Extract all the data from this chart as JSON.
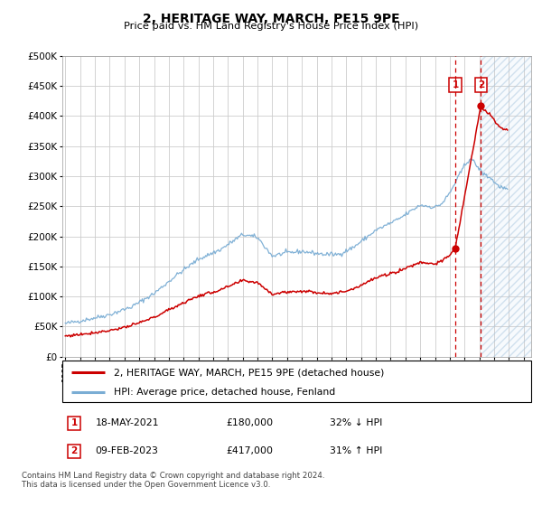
{
  "title": "2, HERITAGE WAY, MARCH, PE15 9PE",
  "subtitle": "Price paid vs. HM Land Registry's House Price Index (HPI)",
  "footer": "Contains HM Land Registry data © Crown copyright and database right 2024.\nThis data is licensed under the Open Government Licence v3.0.",
  "legend_line1": "2, HERITAGE WAY, MARCH, PE15 9PE (detached house)",
  "legend_line2": "HPI: Average price, detached house, Fenland",
  "transaction1_date": "18-MAY-2021",
  "transaction1_price": "£180,000",
  "transaction1_hpi": "32% ↓ HPI",
  "transaction2_date": "09-FEB-2023",
  "transaction2_price": "£417,000",
  "transaction2_hpi": "31% ↑ HPI",
  "hpi_color": "#7aadd4",
  "price_color": "#cc0000",
  "marker_color": "#cc0000",
  "vline_color": "#cc0000",
  "shade_color": "#d8e8f5",
  "grid_color": "#cccccc",
  "ylim": [
    0,
    500000
  ],
  "yticks": [
    0,
    50000,
    100000,
    150000,
    200000,
    250000,
    300000,
    350000,
    400000,
    450000,
    500000
  ],
  "xlim_start": 1994.8,
  "xlim_end": 2026.5,
  "transaction1_x": 2021.37,
  "transaction2_x": 2023.1,
  "transaction1_y": 180000,
  "transaction2_y": 417000,
  "hatch_region_start": 2023.1,
  "hatch_region_end": 2026.5
}
